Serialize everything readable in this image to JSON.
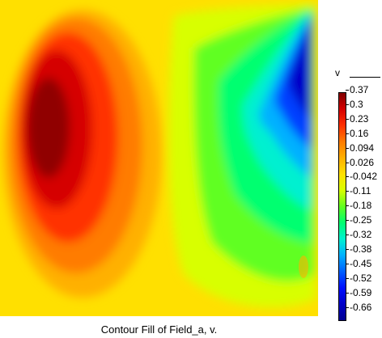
{
  "colorbar": {
    "variable": "v",
    "ticks": [
      "0.37",
      "0.3",
      "0.23",
      "0.16",
      "0.094",
      "0.026",
      "-0.042",
      "-0.11",
      "-0.18",
      "-0.25",
      "-0.32",
      "-0.38",
      "-0.45",
      "-0.52",
      "-0.59",
      "-0.66"
    ],
    "colors": [
      "#800000",
      "#d50000",
      "#ff3000",
      "#ff7b00",
      "#ffb000",
      "#ffe000",
      "#d8ff00",
      "#60ff20",
      "#00ff70",
      "#00f0d0",
      "#00b0ff",
      "#0060ff",
      "#0010ff",
      "#0000c8",
      "#000090"
    ]
  },
  "caption": "Contour Fill of Field_a, v."
}
